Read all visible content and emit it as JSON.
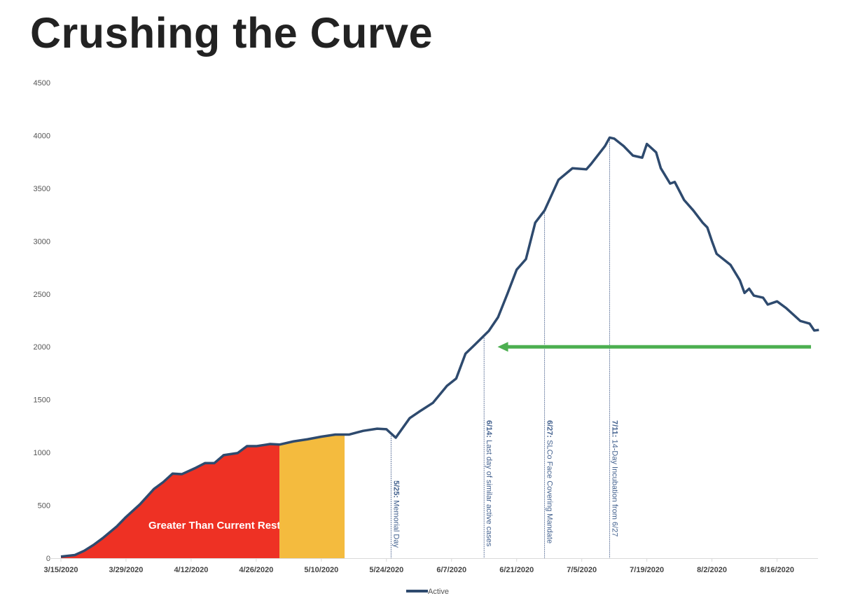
{
  "chart_data": {
    "type": "line",
    "title": "Crushing the Curve",
    "xlabel": "",
    "ylabel": "",
    "ylim": [
      0,
      4500
    ],
    "yticks": [
      0,
      500,
      1000,
      1500,
      2000,
      2500,
      3000,
      3500,
      4000,
      4500
    ],
    "xlim": [
      "3/15/2020",
      "8/25/2020"
    ],
    "xticks": [
      "3/15/2020",
      "3/29/2020",
      "4/12/2020",
      "4/26/2020",
      "5/10/2020",
      "5/24/2020",
      "6/7/2020",
      "6/21/2020",
      "7/5/2020",
      "7/19/2020",
      "8/2/2020",
      "8/16/2020"
    ],
    "grid": false,
    "legend": {
      "position": "bottom",
      "entries": [
        "Active"
      ]
    },
    "series": [
      {
        "name": "Active",
        "color": "#2e4a6e",
        "points": [
          [
            "3/15/2020",
            15
          ],
          [
            "3/18/2020",
            30
          ],
          [
            "3/20/2020",
            70
          ],
          [
            "3/22/2020",
            125
          ],
          [
            "3/24/2020",
            190
          ],
          [
            "3/27/2020",
            300
          ],
          [
            "3/29/2020",
            390
          ],
          [
            "4/1/2020",
            510
          ],
          [
            "4/4/2020",
            655
          ],
          [
            "4/6/2020",
            720
          ],
          [
            "4/8/2020",
            800
          ],
          [
            "4/10/2020",
            795
          ],
          [
            "4/13/2020",
            855
          ],
          [
            "4/15/2020",
            900
          ],
          [
            "4/17/2020",
            900
          ],
          [
            "4/19/2020",
            975
          ],
          [
            "4/22/2020",
            995
          ],
          [
            "4/24/2020",
            1060
          ],
          [
            "4/26/2020",
            1060
          ],
          [
            "4/29/2020",
            1080
          ],
          [
            "5/1/2020",
            1075
          ],
          [
            "5/4/2020",
            1105
          ],
          [
            "5/7/2020",
            1125
          ],
          [
            "5/10/2020",
            1150
          ],
          [
            "5/13/2020",
            1170
          ],
          [
            "5/16/2020",
            1170
          ],
          [
            "5/19/2020",
            1205
          ],
          [
            "5/22/2020",
            1225
          ],
          [
            "5/24/2020",
            1220
          ],
          [
            "5/26/2020",
            1140
          ],
          [
            "5/29/2020",
            1325
          ],
          [
            "5/31/2020",
            1385
          ],
          [
            "6/3/2020",
            1470
          ],
          [
            "6/6/2020",
            1630
          ],
          [
            "6/8/2020",
            1700
          ],
          [
            "6/10/2020",
            1935
          ],
          [
            "6/12/2020",
            2020
          ],
          [
            "6/15/2020",
            2150
          ],
          [
            "6/17/2020",
            2280
          ],
          [
            "6/19/2020",
            2500
          ],
          [
            "6/21/2020",
            2730
          ],
          [
            "6/23/2020",
            2830
          ],
          [
            "6/25/2020",
            3175
          ],
          [
            "6/27/2020",
            3290
          ],
          [
            "6/30/2020",
            3580
          ],
          [
            "7/3/2020",
            3690
          ],
          [
            "7/6/2020",
            3680
          ],
          [
            "7/7/2020",
            3730
          ],
          [
            "7/10/2020",
            3900
          ],
          [
            "7/11/2020",
            3980
          ],
          [
            "7/12/2020",
            3970
          ],
          [
            "7/14/2020",
            3900
          ],
          [
            "7/16/2020",
            3810
          ],
          [
            "7/18/2020",
            3790
          ],
          [
            "7/19/2020",
            3920
          ],
          [
            "7/21/2020",
            3840
          ],
          [
            "7/22/2020",
            3690
          ],
          [
            "7/24/2020",
            3545
          ],
          [
            "7/25/2020",
            3560
          ],
          [
            "7/27/2020",
            3390
          ],
          [
            "7/29/2020",
            3290
          ],
          [
            "7/31/2020",
            3175
          ],
          [
            "8/1/2020",
            3130
          ],
          [
            "8/2/2020",
            3000
          ],
          [
            "8/3/2020",
            2880
          ],
          [
            "8/6/2020",
            2775
          ],
          [
            "8/8/2020",
            2630
          ],
          [
            "8/9/2020",
            2510
          ],
          [
            "8/10/2020",
            2550
          ],
          [
            "8/11/2020",
            2485
          ],
          [
            "8/13/2020",
            2465
          ],
          [
            "8/14/2020",
            2400
          ],
          [
            "8/16/2020",
            2430
          ],
          [
            "8/18/2020",
            2365
          ],
          [
            "8/21/2020",
            2245
          ],
          [
            "8/23/2020",
            2220
          ],
          [
            "8/24/2020",
            2155
          ],
          [
            "8/25/2020",
            2160
          ]
        ]
      }
    ],
    "shaded_regions": [
      {
        "from": "3/15/2020",
        "to": "5/1/2020",
        "color": "#ee3124",
        "label": "Greater Than Current Restrictions"
      },
      {
        "from": "5/1/2020",
        "to": "5/15/2020",
        "color": "#f4bb3e",
        "label": ""
      }
    ],
    "annotations": [
      {
        "date": "5/25/2020",
        "bold": "5/25:",
        "text": " Memorial Day"
      },
      {
        "date": "6/14/2020",
        "bold": "6/14:",
        "text": " Last day of similar active cases"
      },
      {
        "date": "6/27/2020",
        "bold": "6/27:",
        "text": " SLCo Face Covering Mandate"
      },
      {
        "date": "7/11/2020",
        "bold": "7/11:",
        "text": " 14-Day Incubation from 6/27"
      }
    ],
    "arrow": {
      "value": 2000,
      "from": "8/23/2020",
      "to": "6/16/2020",
      "color": "#4caf50"
    },
    "axis_color": "#d9d9d9"
  }
}
